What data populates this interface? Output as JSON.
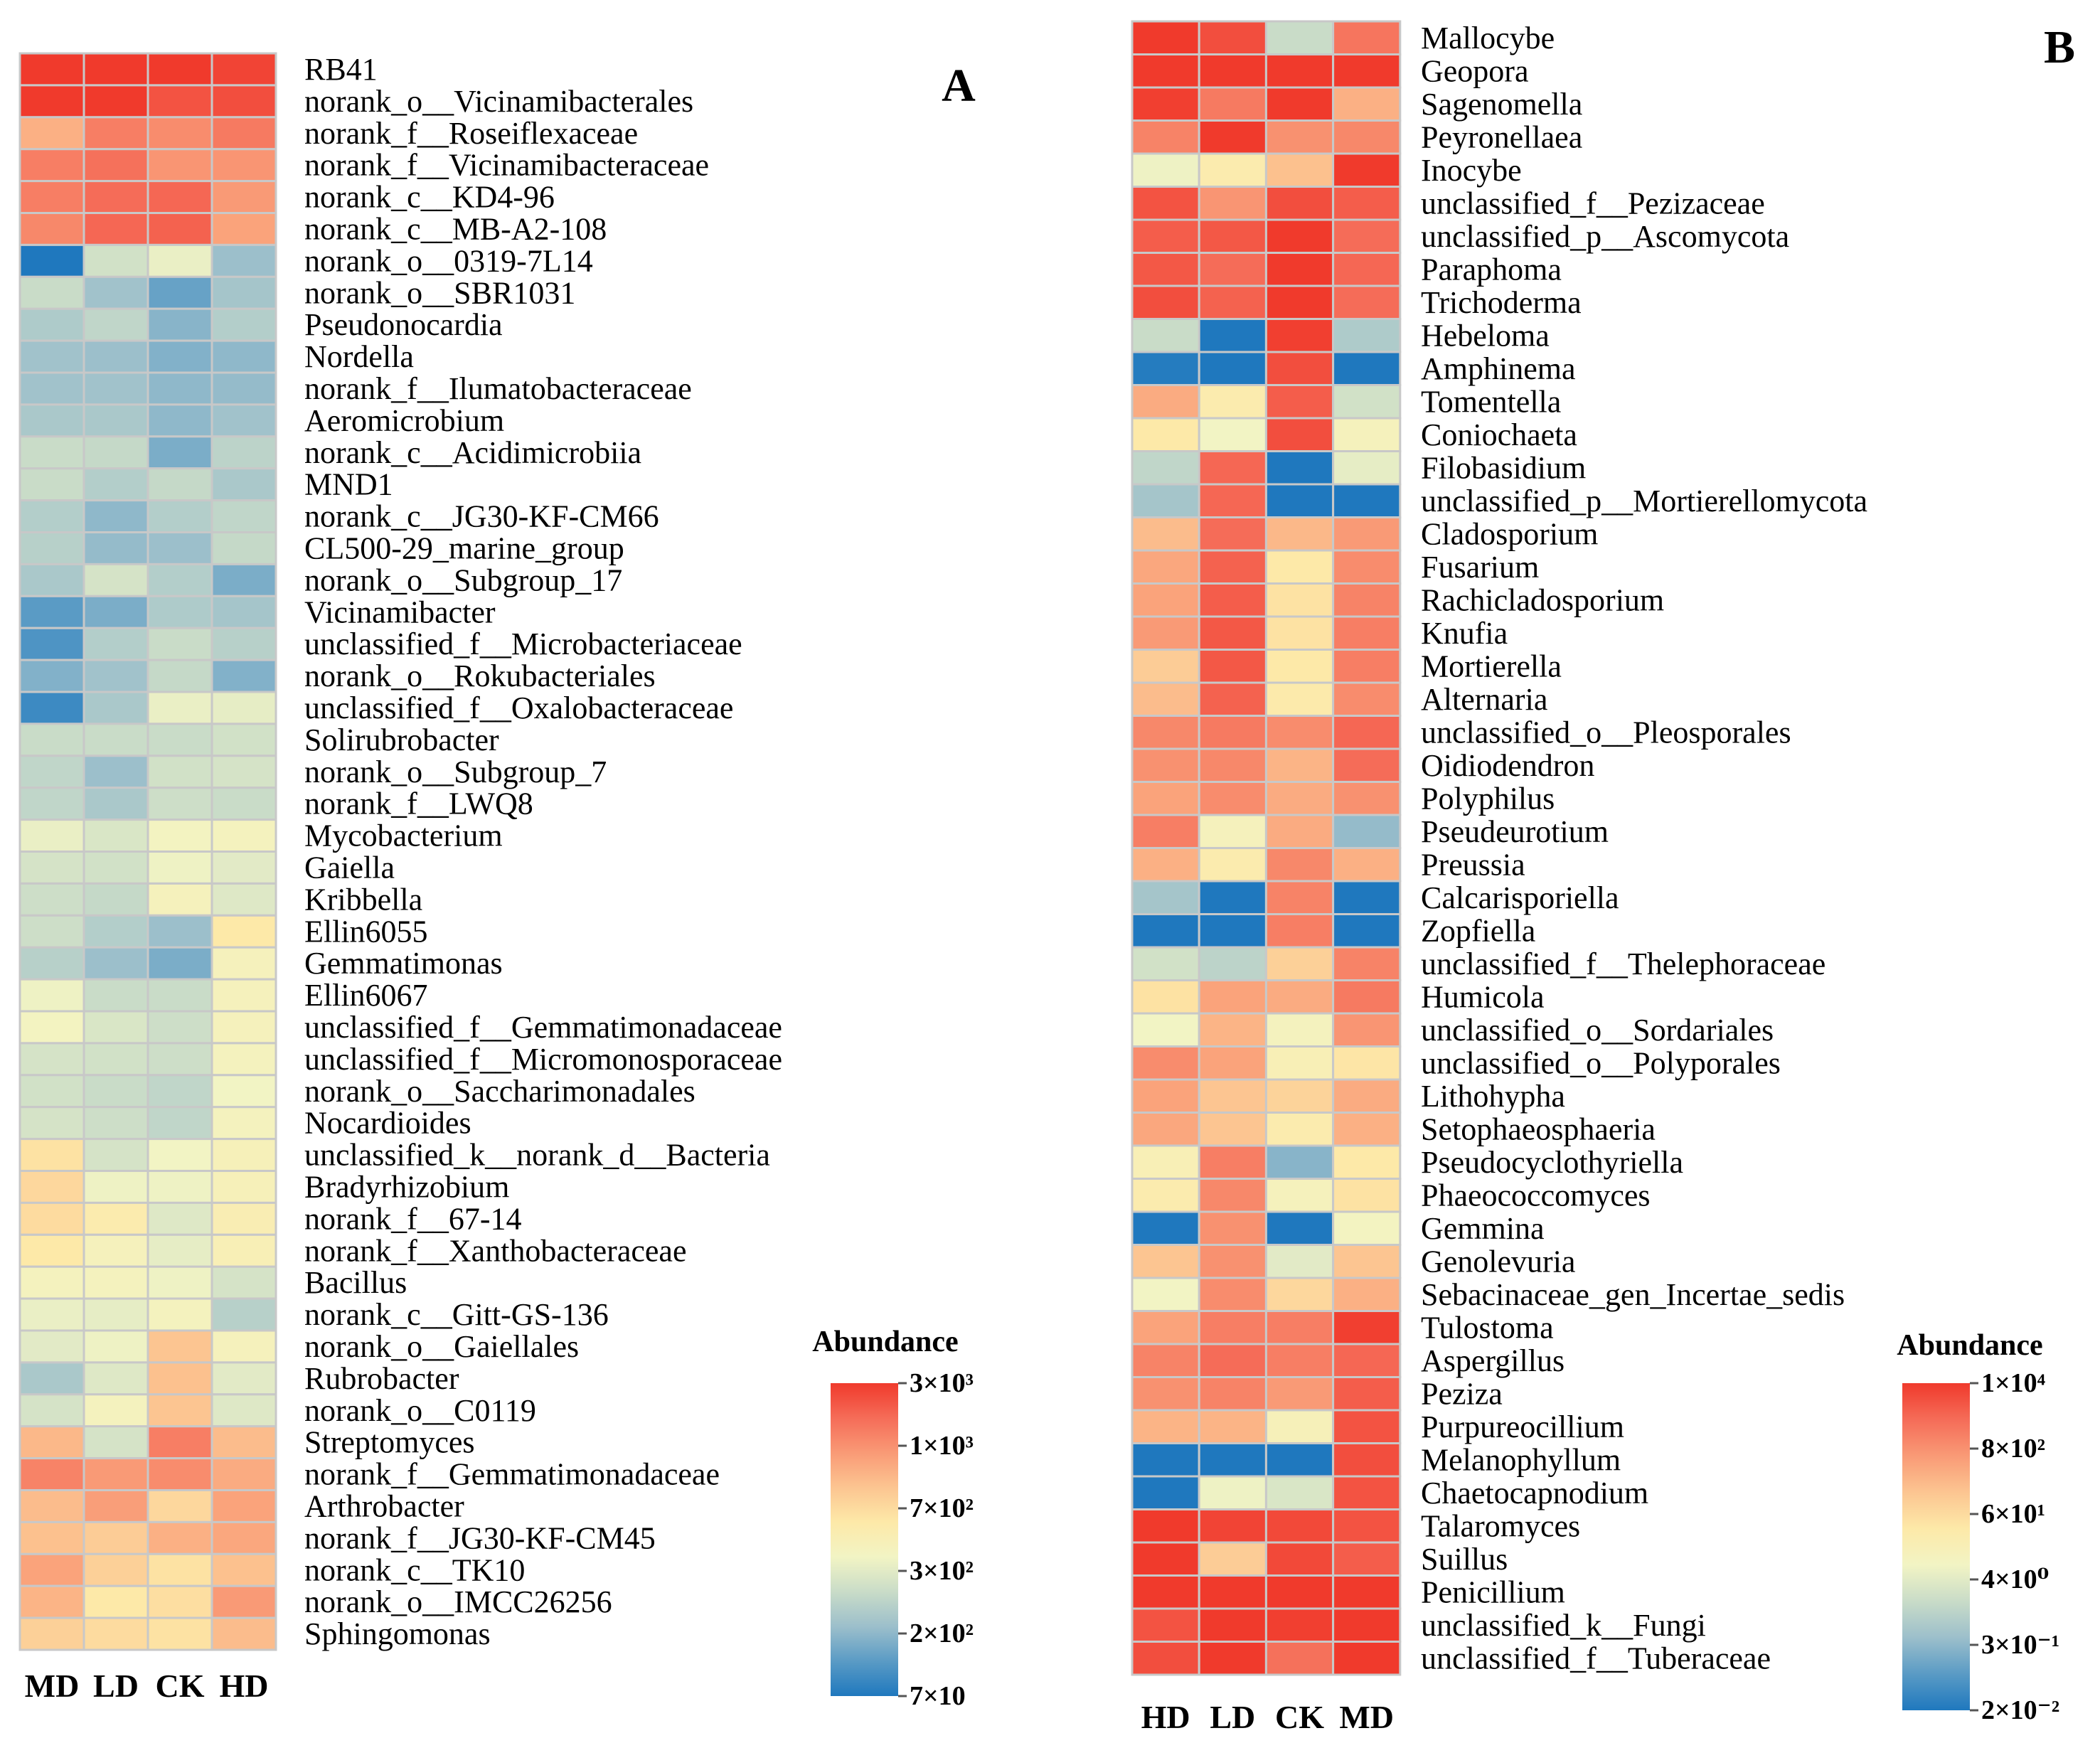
{
  "palette": {
    "cell_border": "#c8c8c8",
    "stops": [
      "#1f78be",
      "#5a9bc5",
      "#9cbfcb",
      "#c9dcc8",
      "#f2f4c4",
      "#fde9a8",
      "#fcc591",
      "#f99a76",
      "#f56c58",
      "#f03a2c"
    ]
  },
  "chart_data": [
    {
      "panel": "A",
      "type": "heatmap",
      "panel_label": "A",
      "columns": [
        "MD",
        "LD",
        "CK",
        "HD"
      ],
      "rows": [
        "RB41",
        "norank_o__Vicinamibacterales",
        "norank_f__Roseiflexaceae",
        "norank_f__Vicinamibacteraceae",
        "norank_c__KD4-96",
        "norank_c__MB-A2-108",
        "norank_o__0319-7L14",
        "norank_o__SBR1031",
        "Pseudonocardia",
        "Nordella",
        "norank_f__Ilumatobacteraceae",
        "Aeromicrobium",
        "norank_c__Acidimicrobiia",
        "MND1",
        "norank_c__JG30-KF-CM66",
        "CL500-29_marine_group",
        "norank_o__Subgroup_17",
        "Vicinamibacter",
        "unclassified_f__Microbacteriaceae",
        "norank_o__Rokubacteriales",
        "unclassified_f__Oxalobacteraceae",
        "Solirubrobacter",
        "norank_o__Subgroup_7",
        "norank_f__LWQ8",
        "Mycobacterium",
        "Gaiella",
        "Kribbella",
        "Ellin6055",
        "Gemmatimonas",
        "Ellin6067",
        "unclassified_f__Gemmatimonadaceae",
        "unclassified_f__Micromonosporaceae",
        "norank_o__Saccharimonadales",
        "Nocardioides",
        "unclassified_k__norank_d__Bacteria",
        "Bradyrhizobium",
        "norank_f__67-14",
        "norank_f__Xanthobacteraceae",
        "Bacillus",
        "norank_c__Gitt-GS-136",
        "norank_o__Gaiellales",
        "Rubrobacter",
        "norank_o__C0119",
        "Streptomyces",
        "norank_f__Gemmatimonadaceae",
        "Arthrobacter",
        "norank_f__JG30-KF-CM45",
        "norank_c__TK10",
        "norank_o__IMCC26256",
        "Sphingomonas"
      ],
      "values": [
        [
          9.3,
          9.6,
          9.4,
          8.8
        ],
        [
          9.0,
          9.2,
          8.5,
          8.6
        ],
        [
          6.5,
          7.6,
          7.3,
          7.7
        ],
        [
          7.6,
          7.9,
          7.1,
          7.1
        ],
        [
          7.6,
          8.0,
          8.1,
          7.0
        ],
        [
          7.4,
          8.1,
          8.2,
          6.8
        ],
        [
          0.0,
          3.2,
          3.8,
          2.0
        ],
        [
          3.0,
          2.1,
          1.2,
          2.2
        ],
        [
          2.4,
          2.8,
          1.7,
          2.5
        ],
        [
          2.1,
          2.0,
          1.6,
          1.8
        ],
        [
          2.1,
          2.1,
          1.8,
          1.9
        ],
        [
          2.3,
          2.3,
          1.8,
          2.1
        ],
        [
          3.0,
          2.9,
          1.5,
          2.7
        ],
        [
          3.0,
          2.5,
          2.9,
          2.3
        ],
        [
          2.5,
          1.8,
          2.5,
          2.8
        ],
        [
          2.6,
          1.9,
          2.0,
          2.9
        ],
        [
          2.3,
          3.3,
          2.5,
          1.5
        ],
        [
          1.0,
          1.5,
          2.4,
          2.2
        ],
        [
          0.8,
          2.5,
          3.0,
          2.6
        ],
        [
          1.6,
          2.1,
          2.9,
          1.6
        ],
        [
          0.5,
          2.3,
          3.8,
          3.7
        ],
        [
          3.0,
          3.0,
          3.0,
          3.2
        ],
        [
          2.8,
          2.0,
          3.2,
          3.3
        ],
        [
          2.8,
          2.3,
          3.1,
          3.0
        ],
        [
          3.8,
          3.4,
          4.1,
          4.2
        ],
        [
          3.3,
          3.2,
          3.9,
          3.6
        ],
        [
          3.1,
          2.9,
          4.3,
          3.5
        ],
        [
          3.1,
          2.5,
          2.0,
          5.0
        ],
        [
          2.6,
          2.0,
          1.5,
          4.3
        ],
        [
          3.9,
          3.0,
          3.0,
          4.3
        ],
        [
          4.1,
          3.4,
          3.1,
          4.3
        ],
        [
          3.3,
          3.2,
          3.1,
          4.2
        ],
        [
          3.2,
          3.0,
          2.8,
          4.0
        ],
        [
          3.3,
          3.1,
          2.8,
          4.2
        ],
        [
          5.2,
          3.3,
          4.0,
          4.4
        ],
        [
          5.5,
          3.9,
          3.9,
          4.4
        ],
        [
          5.4,
          4.8,
          3.5,
          4.6
        ],
        [
          5.0,
          4.3,
          3.7,
          4.5
        ],
        [
          4.2,
          4.2,
          3.9,
          3.3
        ],
        [
          3.8,
          3.7,
          4.2,
          2.6
        ],
        [
          3.6,
          3.9,
          6.0,
          4.3
        ],
        [
          2.3,
          3.5,
          6.1,
          3.6
        ],
        [
          3.3,
          4.2,
          6.0,
          3.5
        ],
        [
          6.3,
          3.3,
          7.6,
          6.2
        ],
        [
          7.5,
          7.0,
          7.3,
          6.6
        ],
        [
          6.2,
          6.9,
          5.5,
          6.8
        ],
        [
          6.1,
          5.8,
          6.5,
          6.7
        ],
        [
          6.8,
          5.7,
          5.2,
          6.1
        ],
        [
          6.4,
          5.0,
          5.3,
          7.0
        ],
        [
          5.7,
          5.4,
          5.2,
          6.2
        ]
      ],
      "legend": {
        "title": "Abundance",
        "ticks": [
          "3×10³",
          "1×10³",
          "7×10²",
          "3×10²",
          "2×10²",
          "7×10"
        ]
      }
    },
    {
      "panel": "B",
      "type": "heatmap",
      "panel_label": "B",
      "columns": [
        "HD",
        "LD",
        "CK",
        "MD"
      ],
      "rows": [
        "Mallocybe",
        "Geopora",
        "Sagenomella",
        "Peyronellaea",
        "Inocybe",
        "unclassified_f__Pezizaceae",
        "unclassified_p__Ascomycota",
        "Paraphoma",
        "Trichoderma",
        "Hebeloma",
        "Amphinema",
        "Tomentella",
        "Coniochaeta",
        "Filobasidium",
        "unclassified_p__Mortierellomycota",
        "Cladosporium",
        "Fusarium",
        "Rachicladosporium",
        "Knufia",
        "Mortierella",
        "Alternaria",
        "unclassified_o__Pleosporales",
        "Oidiodendron",
        "Polyphilus",
        "Pseudeurotium",
        "Preussia",
        "Calcarisporiella",
        "Zopfiella",
        "unclassified_f__Thelephoraceae",
        "Humicola",
        "unclassified_o__Sordariales",
        "unclassified_o__Polyporales",
        "Lithohypha",
        "Setophaeosphaeria",
        "Pseudocyclothyriella",
        "Phaeococcomyces",
        "Gemmina",
        "Genolevuria",
        "Sebacinaceae_gen_Incertae_sedis",
        "Tulostoma",
        "Aspergillus",
        "Peziza",
        "Purpureocillium",
        "Melanophyllum",
        "Chaetocapnodium",
        "Talaromyces",
        "Suillus",
        "Penicillium",
        "unclassified_k__Fungi",
        "unclassified_f__Tuberaceae"
      ],
      "values": [
        [
          9.5,
          8.6,
          3.0,
          7.8
        ],
        [
          9.1,
          9.0,
          9.3,
          9.4
        ],
        [
          8.9,
          7.7,
          9.2,
          6.5
        ],
        [
          7.5,
          9.4,
          7.2,
          7.4
        ],
        [
          3.9,
          4.8,
          6.1,
          9.3
        ],
        [
          8.5,
          7.1,
          8.6,
          8.3
        ],
        [
          8.3,
          8.4,
          9.1,
          8.0
        ],
        [
          8.4,
          8.0,
          9.0,
          8.1
        ],
        [
          8.6,
          8.2,
          9.1,
          8.0
        ],
        [
          3.0,
          0.0,
          8.9,
          2.4
        ],
        [
          0.1,
          0.0,
          8.6,
          0.0
        ],
        [
          6.6,
          4.8,
          8.3,
          3.2
        ],
        [
          5.0,
          4.0,
          8.6,
          4.3
        ],
        [
          2.8,
          8.1,
          0.0,
          3.7
        ],
        [
          2.2,
          8.1,
          0.0,
          0.0
        ],
        [
          6.2,
          8.0,
          6.3,
          7.0
        ],
        [
          6.7,
          8.2,
          5.0,
          7.3
        ],
        [
          6.8,
          8.3,
          5.2,
          7.5
        ],
        [
          7.0,
          8.4,
          5.2,
          7.6
        ],
        [
          5.8,
          8.4,
          5.0,
          7.6
        ],
        [
          6.2,
          8.2,
          4.9,
          7.3
        ],
        [
          7.4,
          7.7,
          7.3,
          8.1
        ],
        [
          7.2,
          7.4,
          6.4,
          8.0
        ],
        [
          6.8,
          7.3,
          6.6,
          7.2
        ],
        [
          7.6,
          4.3,
          6.6,
          1.9
        ],
        [
          6.5,
          4.8,
          7.4,
          6.5
        ],
        [
          2.2,
          0.0,
          7.5,
          0.0
        ],
        [
          0.0,
          0.0,
          7.6,
          0.0
        ],
        [
          3.2,
          2.7,
          5.7,
          7.5
        ],
        [
          5.2,
          6.8,
          6.6,
          7.7
        ],
        [
          4.0,
          6.4,
          4.2,
          7.1
        ],
        [
          7.3,
          6.8,
          4.5,
          5.1
        ],
        [
          6.8,
          6.0,
          5.6,
          6.6
        ],
        [
          6.7,
          6.0,
          4.8,
          6.5
        ],
        [
          4.5,
          7.6,
          1.7,
          5.0
        ],
        [
          4.8,
          7.4,
          4.3,
          5.2
        ],
        [
          0.0,
          7.2,
          0.0,
          4.1
        ],
        [
          6.0,
          7.2,
          3.6,
          6.0
        ],
        [
          4.0,
          7.3,
          5.5,
          6.5
        ],
        [
          6.8,
          7.6,
          7.6,
          8.9
        ],
        [
          7.5,
          8.0,
          7.6,
          8.1
        ],
        [
          7.2,
          7.5,
          7.0,
          8.3
        ],
        [
          6.4,
          6.4,
          4.4,
          8.5
        ],
        [
          0.0,
          0.0,
          0.0,
          8.6
        ],
        [
          0.0,
          3.9,
          3.4,
          8.5
        ],
        [
          9.0,
          8.8,
          8.7,
          8.5
        ],
        [
          9.3,
          5.8,
          8.7,
          8.3
        ],
        [
          9.0,
          9.3,
          9.0,
          9.5
        ],
        [
          8.5,
          9.1,
          8.9,
          9.2
        ],
        [
          8.6,
          9.0,
          7.9,
          9.2
        ]
      ],
      "legend": {
        "title": "Abundance",
        "ticks": [
          "1×10⁴",
          "8×10²",
          "6×10¹",
          "4×10⁰",
          "3×10⁻¹",
          "2×10⁻²"
        ]
      }
    }
  ]
}
